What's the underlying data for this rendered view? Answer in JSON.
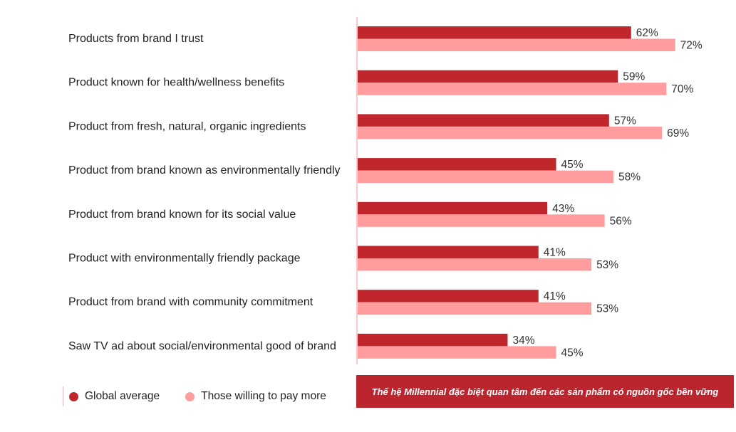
{
  "chart_data": {
    "type": "bar",
    "orientation": "horizontal",
    "title": "",
    "xlabel": "",
    "ylabel": "",
    "xlim": [
      0,
      100
    ],
    "grid": false,
    "legend_position": "bottom-left",
    "categories": [
      "Products from brand I trust",
      "Product known for health/wellness benefits",
      "Product from fresh, natural, organic ingredients",
      "Product from brand known as environmentally friendly",
      "Product from brand known for its social value",
      "Product with environmentally friendly package",
      "Product from brand with community commitment",
      "Saw TV ad about social/environmental good of brand"
    ],
    "series": [
      {
        "name": "Global average",
        "color": "#c0272d",
        "values": [
          62,
          59,
          57,
          45,
          43,
          41,
          41,
          34
        ]
      },
      {
        "name": "Those willing to pay more",
        "color": "#ff9c9e",
        "values": [
          72,
          70,
          69,
          58,
          56,
          53,
          53,
          45
        ]
      }
    ],
    "value_suffix": "%"
  },
  "legend": {
    "items": [
      "Global average",
      "Those willing to pay more"
    ]
  },
  "caption": {
    "text": "Thế hệ Millennial đặc biệt quan tâm đến các sản phẩm có nguồn gốc bền vững",
    "background": "#bb252d"
  }
}
